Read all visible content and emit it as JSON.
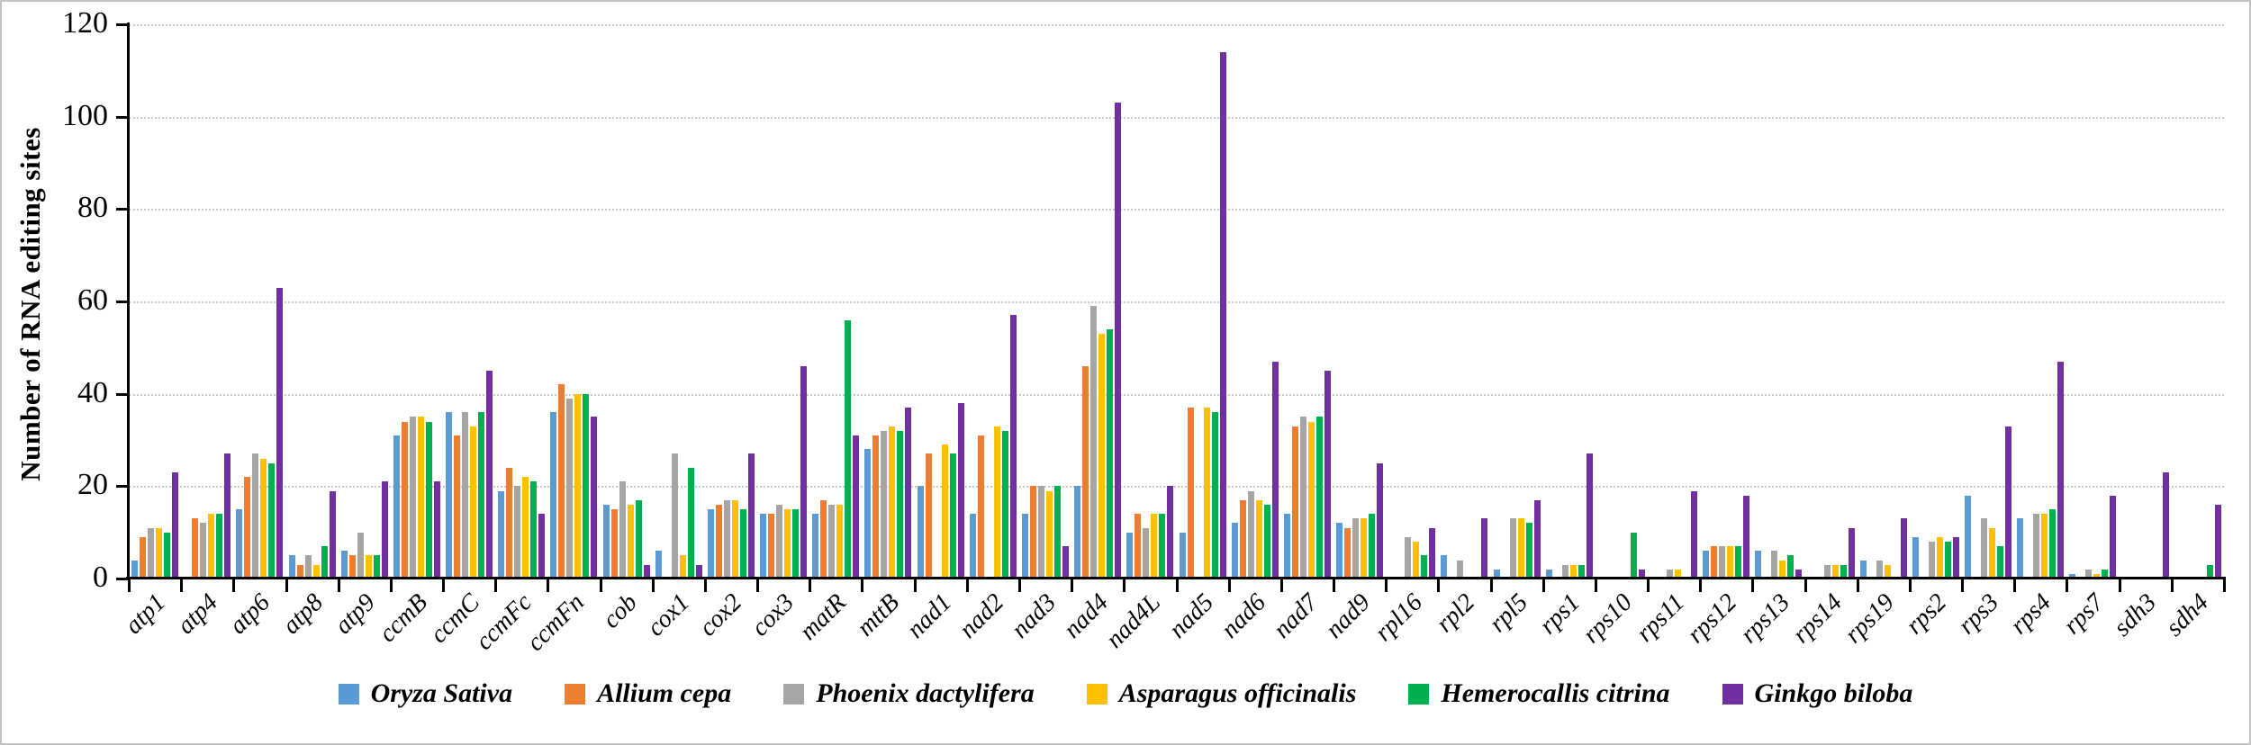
{
  "figure": {
    "background": "#ffffff",
    "border_color": "#c3c3c3",
    "axis_color": "#000000",
    "gridline_color": "#c9c9c9",
    "gridline_style": "dotted"
  },
  "chart_data": {
    "type": "bar",
    "title": "",
    "xlabel": "",
    "ylabel": "Number of RNA editing sites",
    "ylim": [
      0,
      120
    ],
    "yticks": [
      0,
      20,
      40,
      60,
      80,
      100,
      120
    ],
    "grid": "horizontal dotted lines at each y tick",
    "legend_position": "bottom center",
    "categories": [
      "atp1",
      "atp4",
      "atp6",
      "atp8",
      "atp9",
      "ccmB",
      "ccmC",
      "ccmFc",
      "ccmFn",
      "cob",
      "cox1",
      "cox2",
      "cox3",
      "matR",
      "mttB",
      "nad1",
      "nad2",
      "nad3",
      "nad4",
      "nad4L",
      "nad5",
      "nad6",
      "nad7",
      "nad9",
      "rpl16",
      "rpl2",
      "rpl5",
      "rps1",
      "rps10",
      "rps11",
      "rps12",
      "rps13",
      "rps14",
      "rps19",
      "rps2",
      "rps3",
      "rps4",
      "rps7",
      "sdh3",
      "sdh4"
    ],
    "series": [
      {
        "name": "Oryza Sativa",
        "color": "#5B9BD5",
        "values": [
          4,
          0,
          15,
          5,
          6,
          31,
          36,
          19,
          36,
          16,
          6,
          15,
          14,
          14,
          28,
          20,
          14,
          14,
          20,
          10,
          10,
          12,
          14,
          12,
          0,
          5,
          2,
          2,
          0,
          0,
          6,
          6,
          0,
          4,
          9,
          18,
          13,
          1,
          0,
          0
        ]
      },
      {
        "name": "Allium cepa",
        "color": "#ED7D31",
        "values": [
          9,
          13,
          22,
          3,
          5,
          34,
          31,
          24,
          42,
          15,
          0,
          16,
          14,
          17,
          31,
          27,
          31,
          20,
          46,
          14,
          37,
          17,
          33,
          11,
          0,
          0,
          0,
          0,
          0,
          0,
          7,
          0,
          0,
          0,
          0,
          0,
          0,
          0,
          0,
          0
        ]
      },
      {
        "name": "Phoenix dactylifera",
        "color": "#A5A5A5",
        "values": [
          11,
          12,
          27,
          5,
          10,
          35,
          36,
          20,
          39,
          21,
          27,
          17,
          16,
          16,
          32,
          0,
          0,
          20,
          59,
          11,
          0,
          19,
          35,
          13,
          9,
          4,
          13,
          3,
          0,
          2,
          7,
          6,
          3,
          4,
          8,
          13,
          14,
          2,
          0,
          0
        ]
      },
      {
        "name": "Asparagus officinalis",
        "color": "#FFC000",
        "values": [
          11,
          14,
          26,
          3,
          5,
          35,
          33,
          22,
          40,
          16,
          5,
          17,
          15,
          16,
          33,
          29,
          33,
          19,
          53,
          14,
          37,
          17,
          34,
          13,
          8,
          0,
          13,
          3,
          0,
          2,
          7,
          4,
          3,
          3,
          9,
          11,
          14,
          1,
          0,
          0
        ]
      },
      {
        "name": "Hemerocallis citrina",
        "color": "#00B050",
        "values": [
          10,
          14,
          25,
          7,
          5,
          34,
          36,
          21,
          40,
          17,
          24,
          15,
          15,
          56,
          32,
          27,
          32,
          20,
          54,
          14,
          36,
          16,
          35,
          14,
          5,
          0,
          12,
          3,
          10,
          0,
          7,
          5,
          3,
          0,
          8,
          7,
          15,
          2,
          0,
          3
        ]
      },
      {
        "name": "Ginkgo biloba",
        "color": "#7030A0",
        "values": [
          23,
          27,
          63,
          19,
          21,
          21,
          45,
          14,
          35,
          3,
          3,
          27,
          46,
          31,
          37,
          38,
          57,
          7,
          103,
          20,
          114,
          47,
          45,
          25,
          11,
          13,
          17,
          27,
          2,
          19,
          18,
          2,
          11,
          13,
          9,
          33,
          47,
          18,
          23,
          16
        ]
      }
    ]
  }
}
